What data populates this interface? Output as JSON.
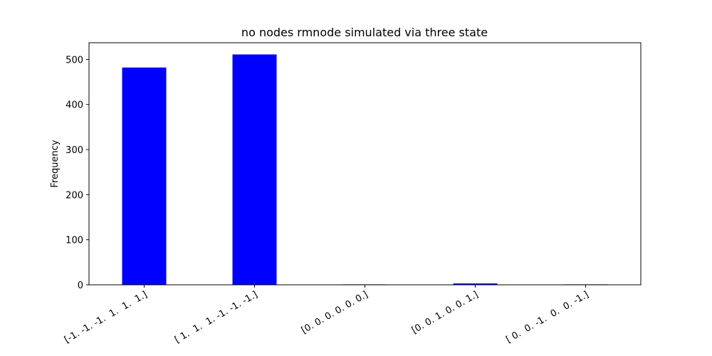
{
  "chart_data": {
    "type": "bar",
    "title": "no nodes rmnode simulated via three state",
    "xlabel": "",
    "ylabel": "Frequency",
    "categories": [
      "[-1. -1. -1.  1.  1.  1.]",
      "[ 1.  1.  1. -1. -1. -1.]",
      "[0. 0. 0. 0. 0. 0.]",
      "[0. 0. 1. 0. 0. 1.]",
      "[ 0.  0. -1.  0.  0. -1.]"
    ],
    "values": [
      482,
      511,
      1,
      3,
      1
    ],
    "ylim": [
      0,
      537
    ],
    "yticks": [
      0,
      100,
      200,
      300,
      400,
      500
    ],
    "bar_color": "#0000ff",
    "grid": false,
    "legend": "none"
  }
}
